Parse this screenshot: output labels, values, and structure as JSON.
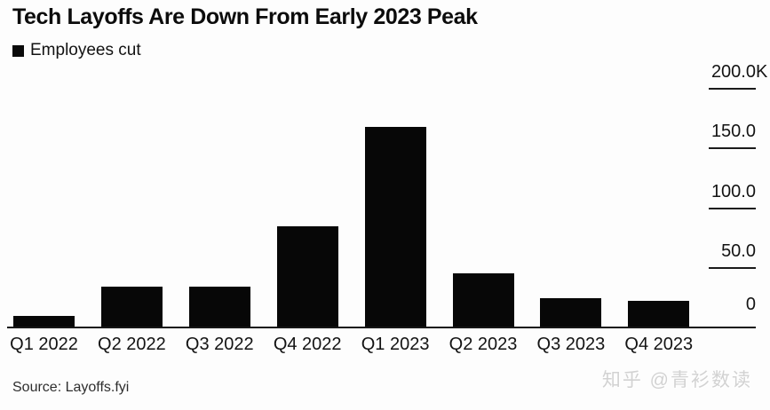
{
  "header": {
    "title": "Tech Layoffs Are Down From Early 2023 Peak",
    "legend_label": "Employees cut"
  },
  "chart_data": {
    "type": "bar",
    "title": "Tech Layoffs Are Down From Early 2023 Peak",
    "legend": [
      "Employees cut"
    ],
    "legend_position": "top-left",
    "categories": [
      "Q1 2022",
      "Q2 2022",
      "Q3 2022",
      "Q4 2022",
      "Q1 2023",
      "Q2 2023",
      "Q3 2023",
      "Q4 2023"
    ],
    "series": [
      {
        "name": "Employees cut",
        "values_thousands": [
          9,
          34,
          34,
          84,
          167,
          45,
          24,
          22
        ]
      }
    ],
    "unit": "thousands of employees",
    "xlabel": "",
    "ylabel": "",
    "ylim_thousands": [
      0,
      200
    ],
    "yticks": [
      {
        "label": "200.0",
        "suffix": "K",
        "value": 200,
        "has_line": true
      },
      {
        "label": "150.0",
        "suffix": "",
        "value": 150,
        "has_line": true
      },
      {
        "label": "100.0",
        "suffix": "",
        "value": 100,
        "has_line": true
      },
      {
        "label": "50.0",
        "suffix": "",
        "value": 50,
        "has_line": true
      },
      {
        "label": "0",
        "suffix": "",
        "value": 0,
        "has_line": false
      }
    ],
    "grid": "off",
    "y_axis_side": "right"
  },
  "footer": {
    "source": "Source: Layoffs.fyi",
    "watermark": "知乎 @青衫数读"
  },
  "colors": {
    "bar": "#070707",
    "background": "#fdfdfd",
    "text": "#131313",
    "watermark": "#d2d2d2"
  }
}
